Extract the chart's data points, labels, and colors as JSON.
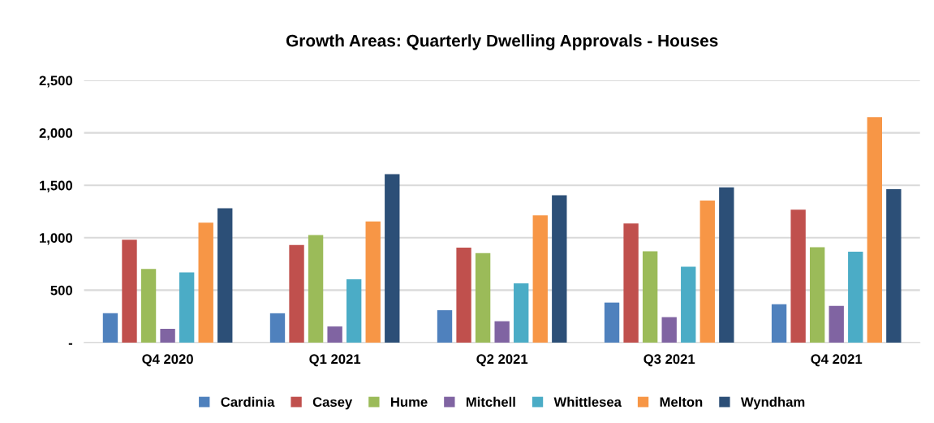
{
  "chart_data": {
    "type": "bar",
    "title": "Growth Areas: Quarterly Dwelling Approvals - Houses",
    "categories": [
      "Q4 2020",
      "Q1 2021",
      "Q2 2021",
      "Q3 2021",
      "Q4 2021"
    ],
    "series": [
      {
        "name": "Cardinia",
        "color": "#4f81bd",
        "values": [
          280,
          280,
          309,
          382,
          366
        ]
      },
      {
        "name": "Casey",
        "color": "#c0504d",
        "values": [
          981,
          931,
          905,
          1135,
          1268
        ]
      },
      {
        "name": "Hume",
        "color": "#9bbb59",
        "values": [
          703,
          1025,
          853,
          871,
          910
        ]
      },
      {
        "name": "Mitchell",
        "color": "#8064a2",
        "values": [
          131,
          154,
          204,
          243,
          350
        ]
      },
      {
        "name": "Whittlesea",
        "color": "#4bacc6",
        "values": [
          669,
          604,
          565,
          724,
          866
        ]
      },
      {
        "name": "Melton",
        "color": "#f79646",
        "values": [
          1143,
          1156,
          1213,
          1355,
          2150
        ]
      },
      {
        "name": "Wyndham",
        "color": "#2c4f77",
        "values": [
          1281,
          1606,
          1404,
          1480,
          1462
        ]
      }
    ],
    "ylim": [
      0,
      2500
    ],
    "yticks": [
      {
        "value": 0,
        "label": "-"
      },
      {
        "value": 500,
        "label": "500"
      },
      {
        "value": 1000,
        "label": "1,000"
      },
      {
        "value": 1500,
        "label": "1,500"
      },
      {
        "value": 2000,
        "label": "2,000"
      },
      {
        "value": 2500,
        "label": "2,500"
      }
    ],
    "grid": "y",
    "legend": "bottom"
  }
}
